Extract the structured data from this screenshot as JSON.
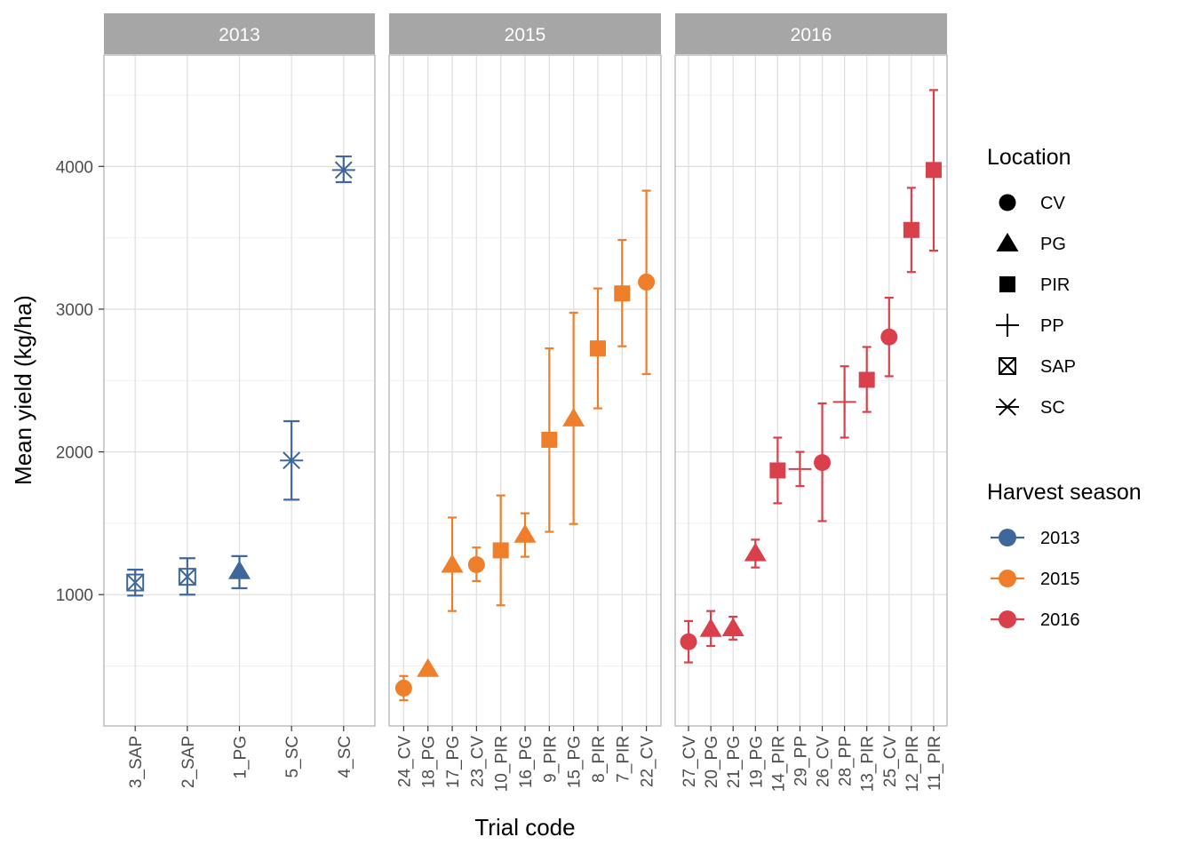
{
  "chart_data": {
    "type": "scatter",
    "xlabel": "Trial code",
    "ylabel": "Mean yield (kg/ha)",
    "y_ticks": [
      1000,
      2000,
      3000,
      4000
    ],
    "ylim": [
      80,
      4780
    ],
    "grid": true,
    "facets": [
      {
        "label": "2013",
        "color": "#3F679B",
        "points": [
          {
            "trial": "3_SAP",
            "location": "SAP",
            "mean": 1085,
            "low": 993,
            "high": 1175
          },
          {
            "trial": "2_SAP",
            "location": "SAP",
            "mean": 1125,
            "low": 1000,
            "high": 1255
          },
          {
            "trial": "1_PG",
            "location": "PG",
            "mean": 1165,
            "low": 1045,
            "high": 1270
          },
          {
            "trial": "5_SC",
            "location": "SC",
            "mean": 1940,
            "low": 1665,
            "high": 2215
          },
          {
            "trial": "4_SC",
            "location": "SC",
            "mean": 3975,
            "low": 3890,
            "high": 4070
          }
        ]
      },
      {
        "label": "2015",
        "color": "#EE7E2A",
        "points": [
          {
            "trial": "24_CV",
            "location": "CV",
            "mean": 345,
            "low": 260,
            "high": 430
          },
          {
            "trial": "18_PG",
            "location": "PG",
            "mean": 480
          },
          {
            "trial": "17_PG",
            "location": "PG",
            "mean": 1210,
            "low": 885,
            "high": 1540
          },
          {
            "trial": "23_CV",
            "location": "CV",
            "mean": 1210,
            "low": 1095,
            "high": 1330
          },
          {
            "trial": "10_PIR",
            "location": "PIR",
            "mean": 1310,
            "low": 925,
            "high": 1695
          },
          {
            "trial": "16_PG",
            "location": "PG",
            "mean": 1420,
            "low": 1265,
            "high": 1570
          },
          {
            "trial": "9_PIR",
            "location": "PIR",
            "mean": 2085,
            "low": 1440,
            "high": 2725
          },
          {
            "trial": "15_PG",
            "location": "PG",
            "mean": 2235,
            "low": 1495,
            "high": 2975
          },
          {
            "trial": "8_PIR",
            "location": "PIR",
            "mean": 2725,
            "low": 2305,
            "high": 3145
          },
          {
            "trial": "7_PIR",
            "location": "PIR",
            "mean": 3110,
            "low": 2740,
            "high": 3485
          },
          {
            "trial": "22_CV",
            "location": "CV",
            "mean": 3190,
            "low": 2545,
            "high": 3830
          }
        ]
      },
      {
        "label": "2016",
        "color": "#D9404B",
        "points": [
          {
            "trial": "27_CV",
            "location": "CV",
            "mean": 670,
            "low": 525,
            "high": 815
          },
          {
            "trial": "20_PG",
            "location": "PG",
            "mean": 760,
            "low": 640,
            "high": 885
          },
          {
            "trial": "21_PG",
            "location": "PG",
            "mean": 765,
            "low": 685,
            "high": 845
          },
          {
            "trial": "19_PG",
            "location": "PG",
            "mean": 1290,
            "low": 1190,
            "high": 1385
          },
          {
            "trial": "14_PIR",
            "location": "PIR",
            "mean": 1870,
            "low": 1640,
            "high": 2100
          },
          {
            "trial": "29_PP",
            "location": "PP",
            "mean": 1880,
            "low": 1760,
            "high": 2000
          },
          {
            "trial": "26_CV",
            "location": "CV",
            "mean": 1925,
            "low": 1515,
            "high": 2340
          },
          {
            "trial": "28_PP",
            "location": "PP",
            "mean": 2350,
            "low": 2100,
            "high": 2600
          },
          {
            "trial": "13_PIR",
            "location": "PIR",
            "mean": 2505,
            "low": 2280,
            "high": 2735
          },
          {
            "trial": "25_CV",
            "location": "CV",
            "mean": 2805,
            "low": 2530,
            "high": 3080
          },
          {
            "trial": "12_PIR",
            "location": "PIR",
            "mean": 3555,
            "low": 3260,
            "high": 3850
          },
          {
            "trial": "11_PIR",
            "location": "PIR",
            "mean": 3975,
            "low": 3410,
            "high": 4535
          }
        ]
      }
    ],
    "legends": {
      "location": {
        "title": "Location",
        "items": [
          {
            "label": "CV",
            "shape": "circle"
          },
          {
            "label": "PG",
            "shape": "triangle"
          },
          {
            "label": "PIR",
            "shape": "square"
          },
          {
            "label": "PP",
            "shape": "plus"
          },
          {
            "label": "SAP",
            "shape": "square-cross"
          },
          {
            "label": "SC",
            "shape": "asterisk"
          }
        ]
      },
      "season": {
        "title": "Harvest season",
        "items": [
          {
            "label": "2013",
            "color": "#3F679B"
          },
          {
            "label": "2015",
            "color": "#EE7E2A"
          },
          {
            "label": "2016",
            "color": "#D9404B"
          }
        ]
      }
    },
    "colors": {
      "strip": "#A6A6A6",
      "strip_text": "#FFFFFF",
      "grid": "#E0E0E0",
      "panel_border": "#B3B3B3",
      "axis_text": "#4D4D4D"
    }
  }
}
